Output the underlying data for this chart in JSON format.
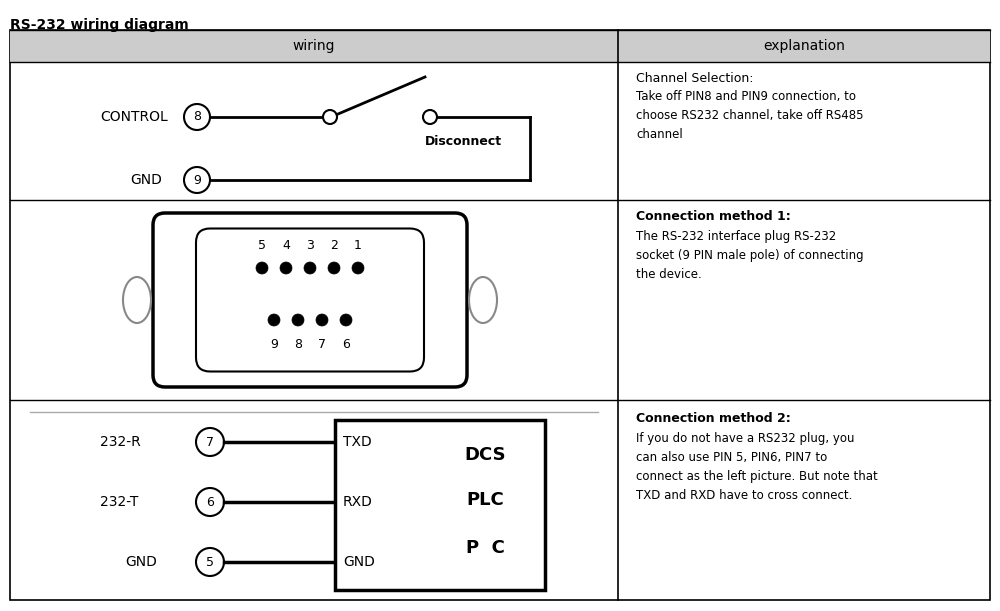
{
  "title": "RS-232 wiring diagram",
  "col1_header": "wiring",
  "col2_header": "explanation",
  "bg_color": "#ffffff",
  "fig_width": 10.0,
  "fig_height": 6.11,
  "explanation1_title": "Channel Selection:",
  "explanation1_body": "Take off PIN8 and PIN9 connection, to\nchoose RS232 channel, take off RS485\nchannel",
  "explanation2_title": "Connection method 1:",
  "explanation2_body": "The RS-232 interface plug RS-232\nsocket (9 PIN male pole) of connecting\nthe device.",
  "explanation3_title": "Connection method 2:",
  "explanation3_body": "If you do not have a RS232 plug, you\ncan also use PIN 5, PIN6, PIN7 to\nconnect as the left picture. But note that\nTXD and RXD have to cross connect."
}
